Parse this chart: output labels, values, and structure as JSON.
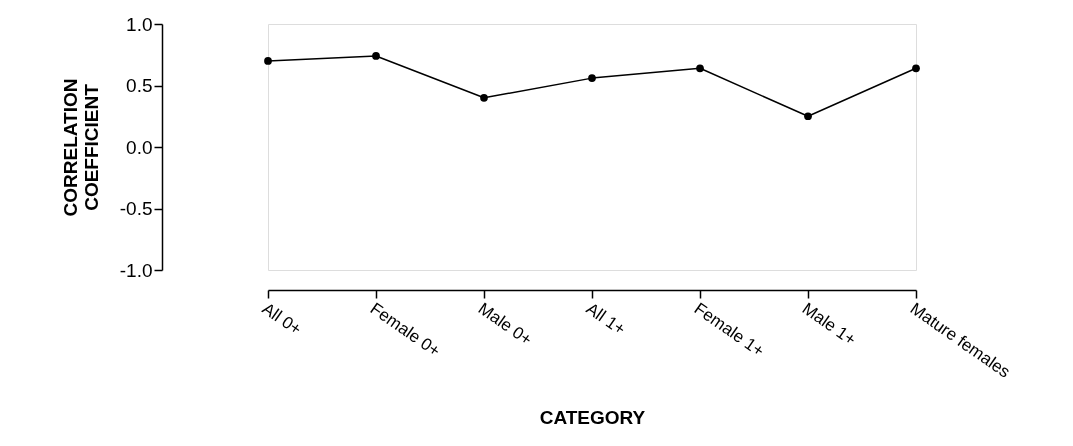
{
  "chart_data": {
    "type": "line",
    "xlabel": "CATEGORY",
    "ylabel": "CORRELATION COEFFICIENT",
    "categories": [
      "All 0+",
      "Female 0+",
      "Male 0+",
      "All 1+",
      "Female 1+",
      "Male 1+",
      "Mature females"
    ],
    "series": [
      {
        "color": "#000000",
        "values": [
          0.7,
          0.74,
          0.4,
          0.56,
          0.64,
          0.25,
          0.64
        ]
      }
    ],
    "ylim": [
      -1.0,
      1.0
    ],
    "yticks": [
      {
        "value": -1.0,
        "label": "-1.0"
      },
      {
        "value": -0.5,
        "label": "-0.5"
      },
      {
        "value": 0,
        "label": "0.0"
      },
      {
        "value": 0.5,
        "label": "0.5"
      },
      {
        "value": 1.0,
        "label": "1.0"
      }
    ],
    "grid": false,
    "marker": "circle",
    "line_style": "solid",
    "legend": false
  }
}
